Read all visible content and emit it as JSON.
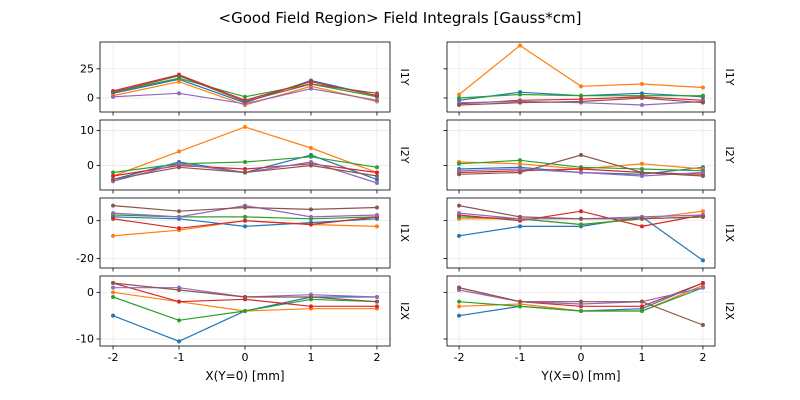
{
  "title": "<Good Field Region> Field Integrals [Gauss*cm]",
  "xlabels": {
    "left": "X(Y=0) [mm]",
    "right": "Y(X=0) [mm]"
  },
  "xticks": [
    -2,
    -1,
    0,
    1,
    2
  ],
  "chart_data": [
    {
      "type": "line",
      "row": 0,
      "col": "left",
      "row_label": "I1Y",
      "x": [
        -2,
        -1,
        0,
        1,
        2
      ],
      "ylim": [
        -12,
        48
      ],
      "yticks": [
        0,
        25
      ],
      "series": [
        {
          "name": "C0",
          "color": "#1f77b4",
          "values": [
            4,
            16,
            -4,
            15,
            2
          ]
        },
        {
          "name": "C1",
          "color": "#ff7f0e",
          "values": [
            2,
            14,
            -6,
            10,
            -3
          ]
        },
        {
          "name": "C2",
          "color": "#2ca02c",
          "values": [
            5,
            17,
            1,
            12,
            1
          ]
        },
        {
          "name": "C3",
          "color": "#d62728",
          "values": [
            6,
            20,
            -2,
            14,
            2
          ]
        },
        {
          "name": "C4",
          "color": "#9467bd",
          "values": [
            1,
            4,
            -5,
            8,
            -2
          ]
        },
        {
          "name": "C5",
          "color": "#8c564b",
          "values": [
            5,
            19,
            -3,
            12,
            4
          ]
        }
      ]
    },
    {
      "type": "line",
      "row": 0,
      "col": "right",
      "row_label": "I1Y",
      "x": [
        -2,
        -1,
        0,
        1,
        2
      ],
      "ylim": [
        -12,
        48
      ],
      "yticks": [
        0,
        25
      ],
      "series": [
        {
          "name": "C0",
          "color": "#1f77b4",
          "values": [
            -2,
            5,
            2,
            4,
            1
          ]
        },
        {
          "name": "C1",
          "color": "#ff7f0e",
          "values": [
            3,
            45,
            10,
            12,
            9
          ]
        },
        {
          "name": "C2",
          "color": "#2ca02c",
          "values": [
            0,
            3,
            2,
            2,
            2
          ]
        },
        {
          "name": "C3",
          "color": "#d62728",
          "values": [
            -5,
            -2,
            -1,
            1,
            -2
          ]
        },
        {
          "name": "C4",
          "color": "#9467bd",
          "values": [
            -4,
            -3,
            -4,
            -6,
            -3
          ]
        },
        {
          "name": "C5",
          "color": "#8c564b",
          "values": [
            -6,
            -4,
            -3,
            0,
            -4
          ]
        }
      ]
    },
    {
      "type": "line",
      "row": 1,
      "col": "left",
      "row_label": "I2Y",
      "x": [
        -2,
        -1,
        0,
        1,
        2
      ],
      "ylim": [
        -7,
        13
      ],
      "yticks": [
        0,
        10
      ],
      "series": [
        {
          "name": "C0",
          "color": "#1f77b4",
          "values": [
            -4,
            1,
            -2,
            3,
            -4
          ]
        },
        {
          "name": "C1",
          "color": "#ff7f0e",
          "values": [
            -3,
            4,
            11,
            5,
            -2
          ]
        },
        {
          "name": "C2",
          "color": "#2ca02c",
          "values": [
            -2,
            0.5,
            1,
            2.5,
            -0.5
          ]
        },
        {
          "name": "C3",
          "color": "#d62728",
          "values": [
            -3,
            0,
            -1,
            0.5,
            -2
          ]
        },
        {
          "name": "C4",
          "color": "#9467bd",
          "values": [
            -4.5,
            0.5,
            -2,
            1,
            -5
          ]
        },
        {
          "name": "C5",
          "color": "#8c564b",
          "values": [
            -4,
            -0.5,
            -2,
            0,
            -3
          ]
        }
      ]
    },
    {
      "type": "line",
      "row": 1,
      "col": "right",
      "row_label": "I2Y",
      "x": [
        -2,
        -1,
        0,
        1,
        2
      ],
      "ylim": [
        -7,
        13
      ],
      "yticks": [
        0,
        10
      ],
      "series": [
        {
          "name": "C0",
          "color": "#1f77b4",
          "values": [
            -1,
            -0.5,
            -2,
            -2.5,
            -0.5
          ]
        },
        {
          "name": "C1",
          "color": "#ff7f0e",
          "values": [
            1,
            0.5,
            -1,
            0.5,
            -1
          ]
        },
        {
          "name": "C2",
          "color": "#2ca02c",
          "values": [
            0.5,
            1.5,
            -0.5,
            -1,
            -1.5
          ]
        },
        {
          "name": "C3",
          "color": "#d62728",
          "values": [
            -2,
            -1.5,
            -1,
            -2,
            -2.5
          ]
        },
        {
          "name": "C4",
          "color": "#9467bd",
          "values": [
            -1.5,
            -1,
            -2,
            -3,
            -2
          ]
        },
        {
          "name": "C5",
          "color": "#8c564b",
          "values": [
            -2.5,
            -2,
            3,
            -2,
            -3
          ]
        }
      ]
    },
    {
      "type": "line",
      "row": 2,
      "col": "left",
      "row_label": "I1X",
      "x": [
        -2,
        -1,
        0,
        1,
        2
      ],
      "ylim": [
        -25,
        12
      ],
      "yticks": [
        -20,
        0
      ],
      "series": [
        {
          "name": "C0",
          "color": "#1f77b4",
          "values": [
            2,
            1,
            -3,
            -1,
            1
          ]
        },
        {
          "name": "C1",
          "color": "#ff7f0e",
          "values": [
            -8,
            -5,
            0,
            -2,
            -3
          ]
        },
        {
          "name": "C2",
          "color": "#2ca02c",
          "values": [
            3,
            2,
            2,
            1,
            2
          ]
        },
        {
          "name": "C3",
          "color": "#d62728",
          "values": [
            1,
            -4,
            0,
            -2,
            2
          ]
        },
        {
          "name": "C4",
          "color": "#9467bd",
          "values": [
            4,
            2,
            8,
            2,
            3
          ]
        },
        {
          "name": "C5",
          "color": "#8c564b",
          "values": [
            8,
            5,
            7,
            6,
            7
          ]
        }
      ]
    },
    {
      "type": "line",
      "row": 2,
      "col": "right",
      "row_label": "I1X",
      "x": [
        -2,
        -1,
        0,
        1,
        2
      ],
      "ylim": [
        -25,
        12
      ],
      "yticks": [
        -20,
        0
      ],
      "series": [
        {
          "name": "C0",
          "color": "#1f77b4",
          "values": [
            -8,
            -3,
            -3,
            2,
            -21
          ]
        },
        {
          "name": "C1",
          "color": "#ff7f0e",
          "values": [
            1,
            1,
            -2,
            1,
            5
          ]
        },
        {
          "name": "C2",
          "color": "#2ca02c",
          "values": [
            2,
            1,
            -2,
            1,
            2
          ]
        },
        {
          "name": "C3",
          "color": "#d62728",
          "values": [
            3,
            0,
            5,
            -3,
            3
          ]
        },
        {
          "name": "C4",
          "color": "#9467bd",
          "values": [
            4,
            1,
            1,
            2,
            3
          ]
        },
        {
          "name": "C5",
          "color": "#8c564b",
          "values": [
            8,
            2,
            1,
            1,
            2
          ]
        }
      ]
    },
    {
      "type": "line",
      "row": 3,
      "col": "left",
      "row_label": "I2X",
      "x": [
        -2,
        -1,
        0,
        1,
        2
      ],
      "ylim": [
        -11.5,
        3.5
      ],
      "yticks": [
        -10,
        0
      ],
      "series": [
        {
          "name": "C0",
          "color": "#1f77b4",
          "values": [
            -5,
            -10.5,
            -4,
            -1,
            -1
          ]
        },
        {
          "name": "C1",
          "color": "#ff7f0e",
          "values": [
            0,
            -2,
            -4,
            -3.5,
            -3.5
          ]
        },
        {
          "name": "C2",
          "color": "#2ca02c",
          "values": [
            -1,
            -6,
            -4,
            -1.5,
            -2
          ]
        },
        {
          "name": "C3",
          "color": "#d62728",
          "values": [
            2,
            -2,
            -1.5,
            -3,
            -3
          ]
        },
        {
          "name": "C4",
          "color": "#9467bd",
          "values": [
            1,
            1,
            -1,
            -0.5,
            -1
          ]
        },
        {
          "name": "C5",
          "color": "#8c564b",
          "values": [
            2,
            0.5,
            -1,
            -1,
            -2
          ]
        }
      ]
    },
    {
      "type": "line",
      "row": 3,
      "col": "right",
      "row_label": "I2X",
      "x": [
        -2,
        -1,
        0,
        1,
        2
      ],
      "ylim": [
        -11.5,
        3.5
      ],
      "yticks": [
        -10,
        0
      ],
      "series": [
        {
          "name": "C0",
          "color": "#1f77b4",
          "values": [
            -5,
            -3,
            -4,
            -3.5,
            2
          ]
        },
        {
          "name": "C1",
          "color": "#ff7f0e",
          "values": [
            -3,
            -2.5,
            -4,
            -4,
            1.5
          ]
        },
        {
          "name": "C2",
          "color": "#2ca02c",
          "values": [
            -2,
            -3,
            -4,
            -4,
            1
          ]
        },
        {
          "name": "C3",
          "color": "#d62728",
          "values": [
            1,
            -2,
            -3,
            -3,
            2
          ]
        },
        {
          "name": "C4",
          "color": "#9467bd",
          "values": [
            0.5,
            -2,
            -2.5,
            -2,
            1
          ]
        },
        {
          "name": "C5",
          "color": "#8c564b",
          "values": [
            1,
            -2,
            -2,
            -2,
            -7
          ]
        }
      ]
    }
  ]
}
